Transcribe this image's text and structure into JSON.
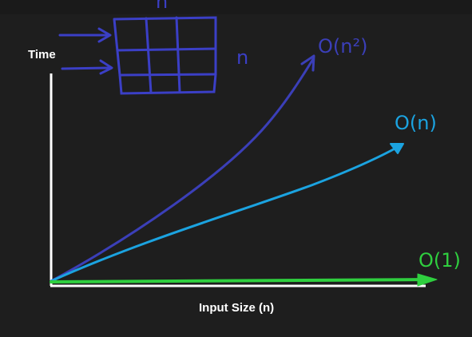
{
  "axes": {
    "y_label": "Time",
    "x_label": "Input Size (n)"
  },
  "curves": [
    {
      "label": "O(n²)",
      "color": "#3b3fb8"
    },
    {
      "label": "O(n)",
      "color": "#1ba3e0"
    },
    {
      "label": "O(1)",
      "color": "#2fcf3f"
    }
  ],
  "grid_sketch": {
    "top_label": "n",
    "side_label": "n",
    "color": "#3b3fc6"
  }
}
